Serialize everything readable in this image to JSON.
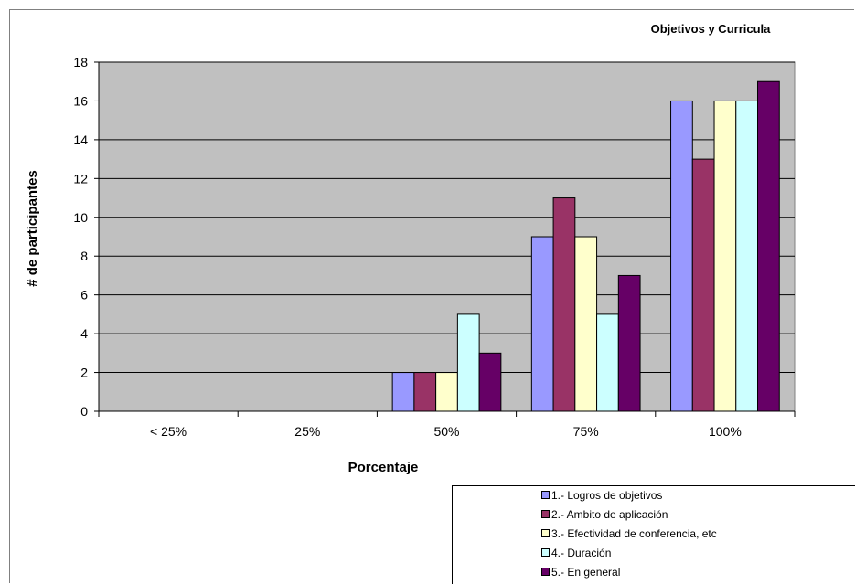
{
  "chart_data": {
    "type": "bar",
    "title": "Objetivos y Curricula",
    "xlabel": "Porcentaje",
    "ylabel": "# de participantes",
    "categories": [
      "< 25%",
      "25%",
      "50%",
      "75%",
      "100%"
    ],
    "ylim": [
      0,
      18
    ],
    "yticks": [
      "0",
      "2",
      "4",
      "6",
      "8",
      "10",
      "12",
      "14",
      "16",
      "18"
    ],
    "grid": true,
    "legend_position": "bottom-right",
    "series": [
      {
        "name": "1.- Logros de objetivos",
        "color": "#9999ff",
        "values": [
          0,
          0,
          2,
          9,
          16
        ]
      },
      {
        "name": "2.- Ambito de aplicación",
        "color": "#993366",
        "values": [
          0,
          0,
          2,
          11,
          13
        ]
      },
      {
        "name": "3.- Efectividad de conferencia, etc",
        "color": "#ffffcc",
        "values": [
          0,
          0,
          2,
          9,
          16
        ]
      },
      {
        "name": "4.- Duración",
        "color": "#ccffff",
        "values": [
          0,
          0,
          5,
          5,
          16
        ]
      },
      {
        "name": "5.- En general",
        "color": "#660066",
        "values": [
          0,
          0,
          3,
          7,
          17
        ]
      }
    ],
    "plot_background": "#c0c0c0"
  }
}
